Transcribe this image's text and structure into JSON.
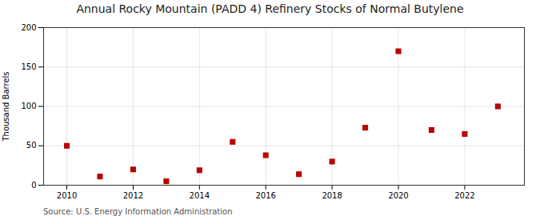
{
  "chart_data": {
    "type": "scatter",
    "title": "Annual Rocky Mountain (PADD 4) Refinery Stocks of Normal Butylene",
    "ylabel": "Thousand Barrels",
    "source": "Source: U.S. Energy Information Administration",
    "x": [
      2010,
      2011,
      2012,
      2013,
      2014,
      2015,
      2016,
      2017,
      2018,
      2019,
      2020,
      2021,
      2022,
      2023
    ],
    "values": [
      50,
      11,
      20,
      5,
      19,
      55,
      38,
      14,
      30,
      73,
      170,
      70,
      65,
      100
    ],
    "xlim": [
      2009.3,
      2023.8
    ],
    "ylim": [
      0,
      200
    ],
    "xticks": [
      2010,
      2012,
      2014,
      2016,
      2018,
      2020,
      2022
    ],
    "yticks": [
      0,
      50,
      100,
      150,
      200
    ],
    "color": "#bb0000",
    "marker": "square",
    "grid": true
  }
}
